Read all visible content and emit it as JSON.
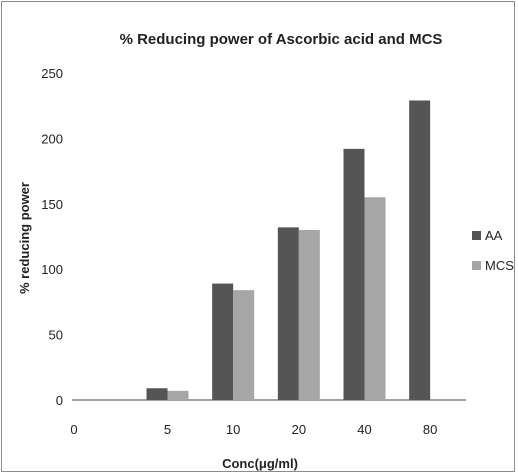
{
  "chart_data": {
    "type": "bar",
    "title": "% Reducing power of Ascorbic acid and MCS",
    "xlabel": "Conc(μg/ml)",
    "ylabel": "% reducing power",
    "categories": [
      "0",
      "5",
      "10",
      "20",
      "40",
      "80"
    ],
    "ylim": [
      0,
      250
    ],
    "yticks": [
      "0",
      "50",
      "100",
      "150",
      "200",
      "250"
    ],
    "grid": false,
    "legend_position": "right",
    "series": [
      {
        "name": "AA",
        "color": "#555555",
        "values": [
          0,
          9,
          89,
          132,
          192,
          229
        ]
      },
      {
        "name": "MCS",
        "color": "#a6a6a6",
        "values": [
          0,
          7,
          84,
          130,
          155,
          0
        ]
      }
    ]
  }
}
